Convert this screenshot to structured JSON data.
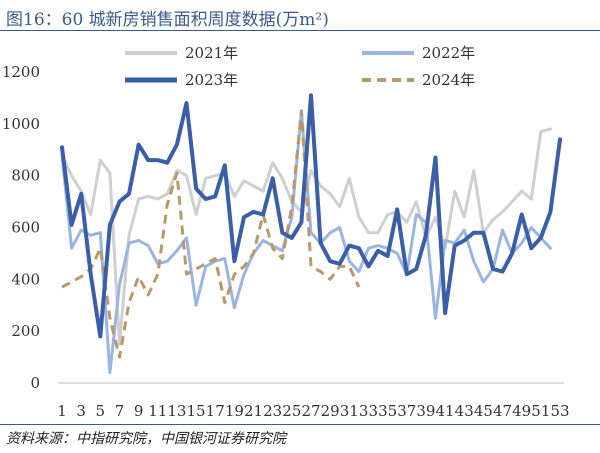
{
  "title": "图16：60 城新房销售面积周度数据(万m²)",
  "source": "资料来源：中指研究院，中国银河证券研究院",
  "chart_data": {
    "type": "line",
    "ylim": [
      0,
      1200
    ],
    "yticks": [
      0,
      200,
      400,
      600,
      800,
      1000,
      1200
    ],
    "x": [
      1,
      2,
      3,
      4,
      5,
      6,
      7,
      8,
      9,
      10,
      11,
      12,
      13,
      14,
      15,
      16,
      17,
      18,
      19,
      20,
      21,
      22,
      23,
      24,
      25,
      26,
      27,
      28,
      29,
      30,
      31,
      32,
      33,
      34,
      35,
      36,
      37,
      38,
      39,
      40,
      41,
      42,
      43,
      44,
      45,
      46,
      47,
      48,
      49,
      50,
      51,
      52,
      53
    ],
    "xticks": [
      1,
      3,
      5,
      7,
      9,
      11,
      13,
      15,
      17,
      19,
      21,
      23,
      25,
      27,
      29,
      31,
      33,
      35,
      37,
      39,
      41,
      43,
      45,
      47,
      49,
      51,
      53
    ],
    "legend_placement": "top",
    "series": [
      {
        "name": "2021年",
        "color": "#cfcfcf",
        "dash": false,
        "width": 3,
        "values": [
          880,
          800,
          740,
          650,
          860,
          810,
          150,
          570,
          710,
          720,
          710,
          730,
          820,
          800,
          650,
          790,
          800,
          810,
          720,
          780,
          760,
          740,
          850,
          790,
          700,
          660,
          820,
          760,
          730,
          680,
          790,
          640,
          580,
          580,
          650,
          660,
          620,
          700,
          560,
          640,
          520,
          740,
          640,
          820,
          580,
          630,
          660,
          700,
          740,
          710,
          970,
          980,
          null
        ]
      },
      {
        "name": "2022年",
        "color": "#9bb5e2",
        "dash": false,
        "width": 3,
        "values": [
          880,
          520,
          590,
          570,
          580,
          40,
          380,
          540,
          550,
          530,
          460,
          470,
          510,
          560,
          300,
          450,
          470,
          480,
          290,
          420,
          500,
          550,
          530,
          510,
          640,
          1050,
          580,
          540,
          580,
          600,
          470,
          430,
          520,
          530,
          520,
          500,
          420,
          650,
          620,
          250,
          550,
          540,
          590,
          470,
          390,
          440,
          590,
          500,
          540,
          600,
          560,
          520,
          null
        ]
      },
      {
        "name": "2023年",
        "color": "#3b5ea8",
        "dash": false,
        "width": 4,
        "values": [
          910,
          610,
          730,
          420,
          180,
          610,
          700,
          730,
          920,
          860,
          860,
          850,
          920,
          1080,
          750,
          710,
          720,
          840,
          470,
          640,
          660,
          650,
          790,
          580,
          560,
          620,
          1110,
          540,
          470,
          460,
          530,
          520,
          450,
          510,
          490,
          670,
          420,
          440,
          570,
          870,
          270,
          530,
          550,
          580,
          580,
          440,
          430,
          500,
          650,
          520,
          560,
          660,
          940
        ]
      },
      {
        "name": "2024年",
        "color": "#b89a6a",
        "dash": true,
        "width": 3,
        "values": [
          370,
          390,
          410,
          440,
          520,
          250,
          100,
          310,
          410,
          340,
          420,
          690,
          810,
          420,
          440,
          460,
          480,
          310,
          420,
          450,
          500,
          650,
          520,
          480,
          680,
          1050,
          450,
          430,
          400,
          450,
          450,
          370,
          null,
          null,
          null,
          null,
          null,
          null,
          null,
          null,
          null,
          null,
          null,
          null,
          null,
          null,
          null,
          null,
          null,
          null,
          null,
          null,
          null
        ]
      }
    ]
  }
}
